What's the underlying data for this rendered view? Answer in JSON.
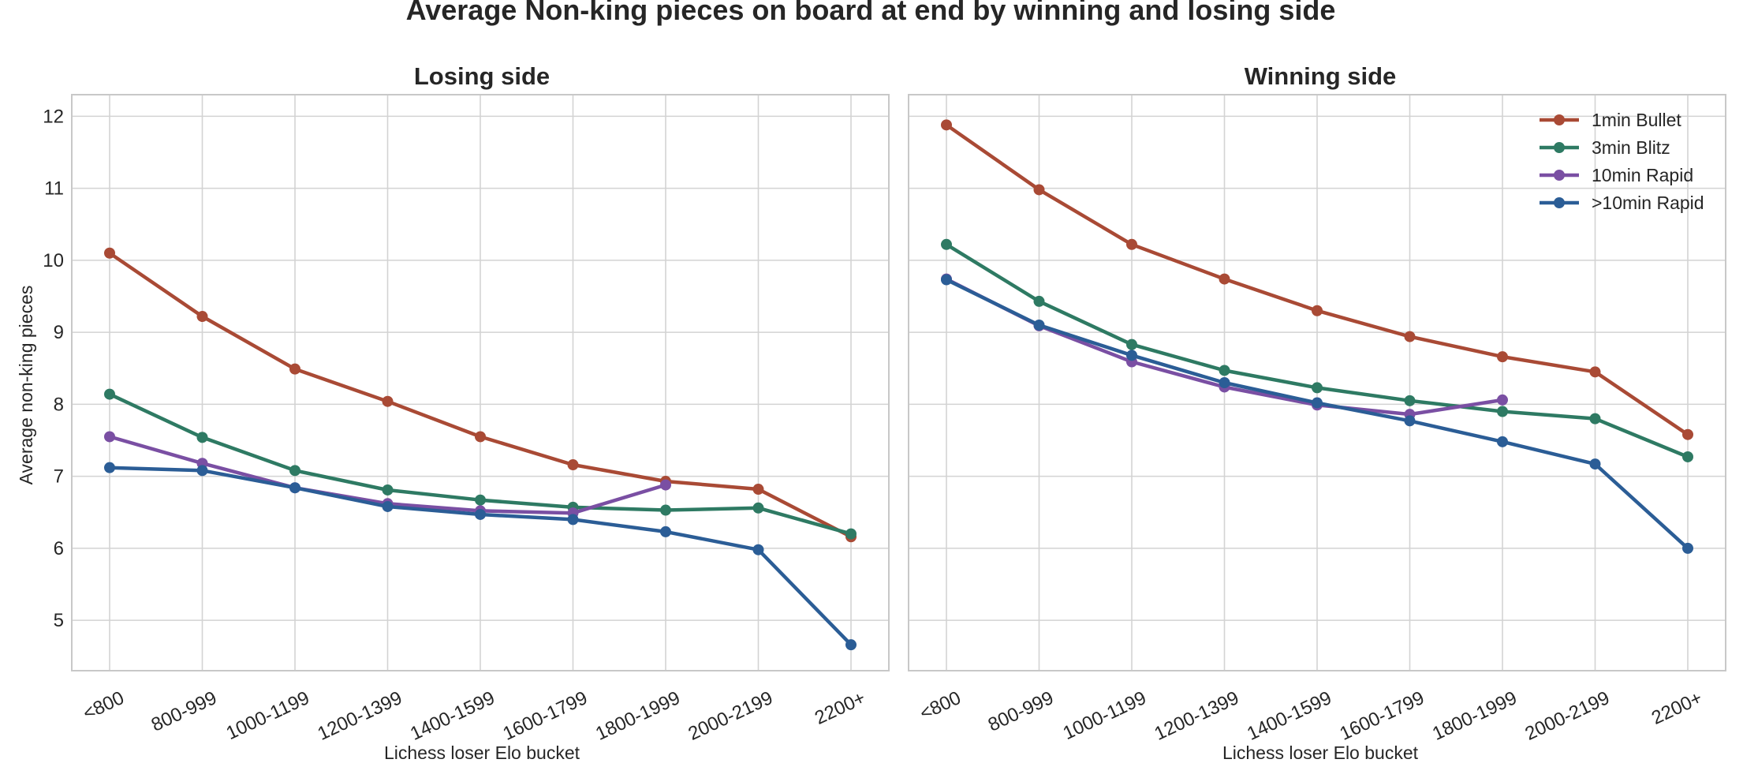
{
  "chart_data": {
    "type": "line",
    "title": "Average Non-king pieces on board at end by winning and losing side",
    "categories": [
      "<800",
      "800-999",
      "1000-1199",
      "1200-1399",
      "1400-1599",
      "1600-1799",
      "1800-1999",
      "2000-2199",
      "2200+"
    ],
    "ylim": [
      4.3,
      12.3
    ],
    "yticks": [
      5,
      6,
      7,
      8,
      9,
      10,
      11,
      12
    ],
    "xlabel": "Lichess loser Elo bucket",
    "ylabel": "Average non-king pieces",
    "grid": true,
    "legend_position": "top-right",
    "colors": {
      "1min Bullet": "#a94a35",
      "3min Blitz": "#2e7a63",
      "10min Rapid": "#7a4fa3",
      ">10min Rapid": "#2b5d96"
    },
    "panels": [
      {
        "title": "Losing side",
        "series": [
          {
            "name": "1min Bullet",
            "values": [
              10.1,
              9.22,
              8.49,
              8.04,
              7.55,
              7.16,
              6.93,
              6.82,
              6.16
            ]
          },
          {
            "name": "3min Blitz",
            "values": [
              8.14,
              7.54,
              7.08,
              6.81,
              6.67,
              6.57,
              6.53,
              6.56,
              6.2
            ]
          },
          {
            "name": "10min Rapid",
            "values": [
              7.55,
              7.18,
              6.84,
              6.62,
              6.52,
              6.49,
              6.88,
              null,
              null
            ]
          },
          {
            "name": ">10min Rapid",
            "values": [
              7.12,
              7.08,
              6.84,
              6.58,
              6.47,
              6.4,
              6.23,
              5.98,
              4.66
            ]
          }
        ]
      },
      {
        "title": "Winning side",
        "series": [
          {
            "name": "1min Bullet",
            "values": [
              11.88,
              10.98,
              10.22,
              9.74,
              9.3,
              8.94,
              8.66,
              8.45,
              7.58
            ]
          },
          {
            "name": "3min Blitz",
            "values": [
              10.22,
              9.43,
              8.83,
              8.47,
              8.23,
              8.05,
              7.9,
              7.8,
              7.27
            ]
          },
          {
            "name": "10min Rapid",
            "values": [
              9.74,
              9.09,
              8.59,
              8.24,
              7.99,
              7.86,
              8.06,
              null,
              null
            ]
          },
          {
            "name": ">10min Rapid",
            "values": [
              9.73,
              9.1,
              8.68,
              8.3,
              8.02,
              7.77,
              7.48,
              7.17,
              6.0
            ]
          }
        ]
      }
    ]
  }
}
